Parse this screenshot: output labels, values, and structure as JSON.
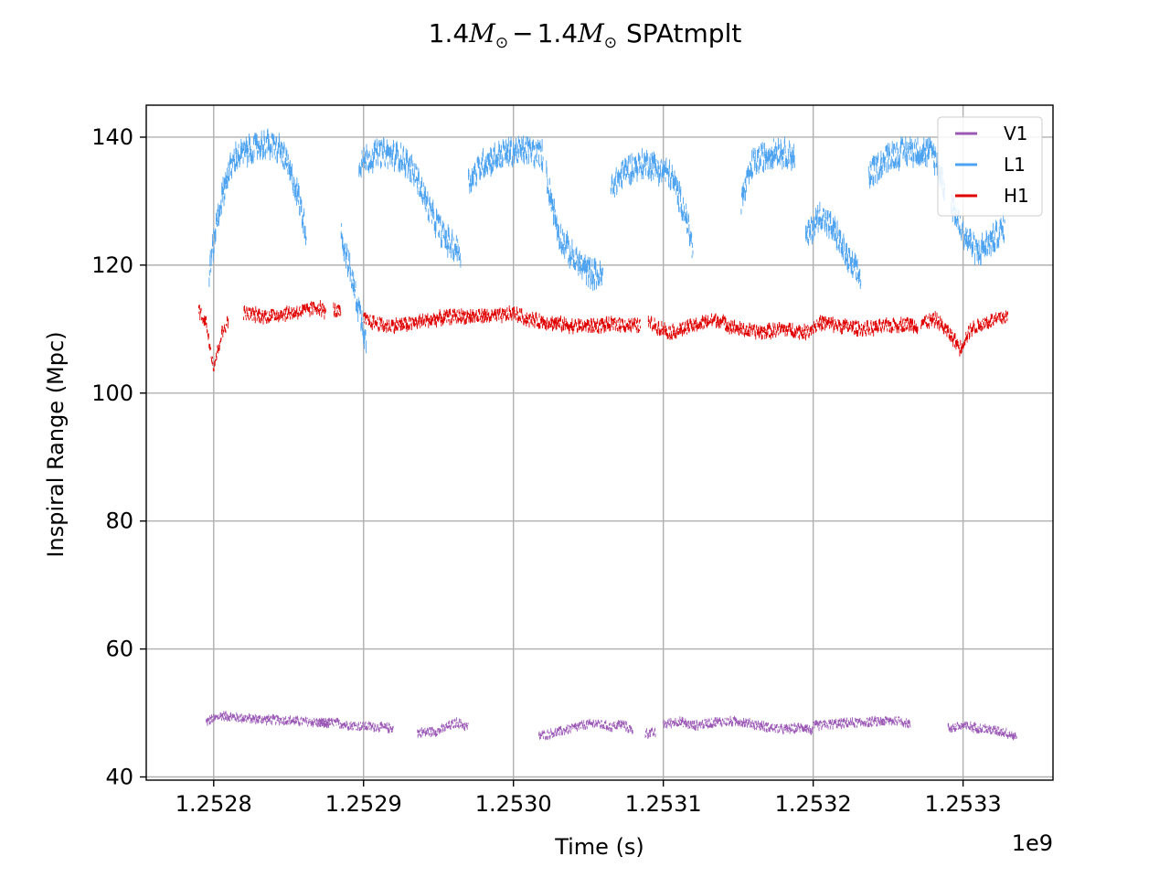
{
  "chart_data": {
    "type": "scatter",
    "title_main": "1.4",
    "title_m": "M",
    "title_sub": "⊙",
    "title_minus": "−",
    "title_tail": "SPAtmplt",
    "xlabel": "Time (s)",
    "ylabel": "Inspiral Range (Mpc)",
    "x_offset_label": "1e9",
    "xlim": [
      1252755000,
      1253360000
    ],
    "ylim": [
      39.5,
      145
    ],
    "x_ticks": [
      1252800000,
      1252900000,
      1253000000,
      1253100000,
      1253200000,
      1253300000
    ],
    "x_tick_labels": [
      "1.2528",
      "1.2529",
      "1.2530",
      "1.2531",
      "1.2532",
      "1.2533"
    ],
    "y_ticks": [
      40,
      60,
      80,
      100,
      120,
      140
    ],
    "y_tick_labels": [
      "40",
      "60",
      "80",
      "100",
      "120",
      "140"
    ],
    "grid": true,
    "legend_position": "top-right",
    "series": [
      {
        "name": "V1",
        "color": "#9b59b6",
        "noise": 0.6,
        "points": [
          [
            1252795000,
            48.6
          ],
          [
            1252805000,
            49.6
          ],
          [
            1252815000,
            49.3
          ],
          [
            1252830000,
            49.0
          ],
          [
            1252845000,
            48.9
          ],
          [
            1252858000,
            48.7
          ],
          [
            1252870000,
            48.5
          ],
          [
            1252878000,
            48.3
          ],
          null,
          [
            1252870000,
            48.3
          ],
          [
            1252880000,
            48.5
          ],
          [
            1252888000,
            48.2
          ],
          [
            1252895000,
            48.0
          ],
          [
            1252910000,
            47.8
          ],
          [
            1252920000,
            47.6
          ],
          null,
          [
            1252936000,
            46.9
          ],
          [
            1252950000,
            47.2
          ],
          [
            1252962000,
            48.5
          ],
          [
            1252970000,
            47.8
          ],
          null,
          [
            1253017000,
            46.4
          ],
          [
            1253030000,
            47.0
          ],
          [
            1253045000,
            48.0
          ],
          [
            1253055000,
            48.4
          ],
          [
            1253065000,
            47.8
          ],
          [
            1253072000,
            48.3
          ],
          [
            1253080000,
            47.2
          ],
          null,
          [
            1253088000,
            46.8
          ],
          [
            1253095000,
            46.9
          ],
          null,
          [
            1253100000,
            48.2
          ],
          [
            1253110000,
            48.7
          ],
          [
            1253120000,
            48.0
          ],
          [
            1253135000,
            48.6
          ],
          [
            1253150000,
            48.7
          ],
          [
            1253165000,
            48.0
          ],
          [
            1253180000,
            47.4
          ],
          [
            1253195000,
            47.8
          ],
          [
            1253200000,
            47.0
          ],
          null,
          [
            1253200000,
            48.0
          ],
          [
            1253215000,
            48.3
          ],
          [
            1253230000,
            48.5
          ],
          [
            1253245000,
            48.7
          ],
          [
            1253258000,
            48.8
          ],
          [
            1253265000,
            48.2
          ],
          null,
          [
            1253290000,
            47.6
          ],
          [
            1253300000,
            48.0
          ],
          [
            1253315000,
            47.5
          ],
          [
            1253328000,
            47.0
          ],
          [
            1253336000,
            46.2
          ]
        ]
      },
      {
        "name": "L1",
        "color": "#4da3f0",
        "noise": 1.8,
        "points": [
          [
            1252797000,
            119.0
          ],
          [
            1252803000,
            128.0
          ],
          [
            1252809000,
            134.0
          ],
          [
            1252815000,
            137.0
          ],
          [
            1252825000,
            138.0
          ],
          [
            1252835000,
            139.0
          ],
          [
            1252845000,
            138.0
          ],
          [
            1252855000,
            132.0
          ],
          [
            1252862000,
            125.0
          ],
          null,
          [
            1252885000,
            125.0
          ],
          [
            1252893000,
            117.0
          ],
          [
            1252898000,
            112.0
          ],
          [
            1252902000,
            108.0
          ],
          null,
          [
            1252897000,
            136.0
          ],
          [
            1252910000,
            137.5
          ],
          [
            1252925000,
            137.0
          ],
          [
            1252935000,
            134.0
          ],
          [
            1252945000,
            128.0
          ],
          [
            1252955000,
            124.0
          ],
          [
            1252965000,
            122.0
          ],
          null,
          [
            1252970000,
            133.0
          ],
          [
            1252980000,
            136.0
          ],
          [
            1252995000,
            137.5
          ],
          [
            1253010000,
            138.0
          ],
          [
            1253020000,
            137.0
          ],
          null,
          [
            1253022000,
            134.0
          ],
          [
            1253030000,
            125.0
          ],
          [
            1253040000,
            121.0
          ],
          [
            1253050000,
            119.0
          ],
          [
            1253060000,
            118.0
          ],
          null,
          [
            1253065000,
            132.0
          ],
          [
            1253075000,
            135.0
          ],
          [
            1253090000,
            136.0
          ],
          [
            1253105000,
            134.0
          ],
          [
            1253115000,
            128.0
          ],
          [
            1253120000,
            122.0
          ],
          null,
          [
            1253152000,
            130.0
          ],
          [
            1253160000,
            136.0
          ],
          [
            1253175000,
            138.0
          ],
          [
            1253188000,
            137.0
          ],
          null,
          [
            1253195000,
            124.0
          ],
          [
            1253205000,
            128.0
          ],
          [
            1253215000,
            125.0
          ],
          [
            1253225000,
            120.0
          ],
          [
            1253232000,
            118.0
          ],
          null,
          [
            1253237000,
            134.0
          ],
          [
            1253250000,
            137.0
          ],
          [
            1253265000,
            138.0
          ],
          [
            1253280000,
            137.5
          ],
          [
            1253288000,
            132.0
          ],
          null,
          [
            1253292000,
            130.0
          ],
          [
            1253300000,
            125.0
          ],
          [
            1253310000,
            122.0
          ],
          [
            1253320000,
            124.0
          ],
          [
            1253328000,
            126.0
          ]
        ]
      },
      {
        "name": "H1",
        "color": "#e00000",
        "noise": 0.9,
        "points": [
          [
            1252790000,
            113.0
          ],
          [
            1252795000,
            111.0
          ],
          [
            1252800000,
            104.0
          ],
          [
            1252805000,
            109.0
          ],
          [
            1252810000,
            111.5
          ],
          null,
          [
            1252820000,
            112.5
          ],
          [
            1252835000,
            112.0
          ],
          [
            1252850000,
            112.5
          ],
          [
            1252860000,
            112.8
          ],
          [
            1252870000,
            113.5
          ],
          [
            1252875000,
            112.5
          ],
          null,
          [
            1252880000,
            113.0
          ],
          [
            1252885000,
            112.5
          ],
          null,
          [
            1252900000,
            111.5
          ],
          [
            1252915000,
            110.5
          ],
          [
            1252930000,
            110.8
          ],
          [
            1252945000,
            111.5
          ],
          [
            1252960000,
            112.0
          ],
          [
            1252975000,
            112.0
          ],
          [
            1252990000,
            112.0
          ],
          [
            1253000000,
            112.5
          ],
          [
            1253010000,
            111.5
          ],
          [
            1253025000,
            111.0
          ],
          [
            1253040000,
            110.5
          ],
          [
            1253055000,
            110.5
          ],
          [
            1253070000,
            110.8
          ],
          [
            1253085000,
            110.5
          ],
          null,
          [
            1253090000,
            111.0
          ],
          [
            1253105000,
            109.5
          ],
          [
            1253120000,
            110.5
          ],
          [
            1253135000,
            111.5
          ],
          [
            1253150000,
            110.0
          ],
          [
            1253165000,
            109.5
          ],
          [
            1253180000,
            110.0
          ],
          [
            1253195000,
            109.5
          ],
          [
            1253205000,
            111.0
          ],
          [
            1253220000,
            110.5
          ],
          [
            1253235000,
            110.0
          ],
          [
            1253250000,
            110.5
          ],
          [
            1253262000,
            110.8
          ],
          [
            1253270000,
            110.5
          ],
          null,
          [
            1253272000,
            111.0
          ],
          [
            1253282000,
            111.5
          ],
          [
            1253292000,
            109.0
          ],
          [
            1253298000,
            107.0
          ],
          [
            1253305000,
            110.0
          ],
          [
            1253315000,
            111.0
          ],
          [
            1253322000,
            111.5
          ],
          [
            1253330000,
            112.0
          ]
        ]
      }
    ],
    "legend_order": [
      "V1",
      "L1",
      "H1"
    ]
  }
}
